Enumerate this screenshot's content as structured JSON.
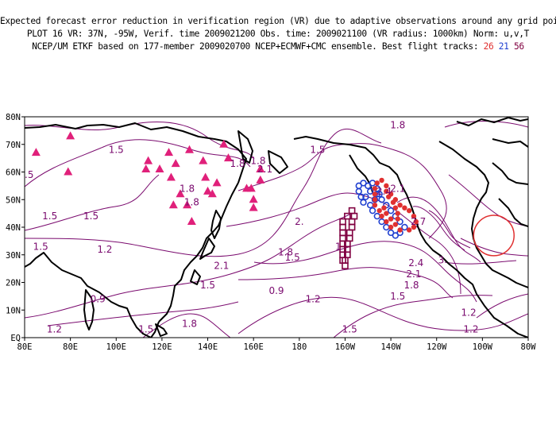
{
  "header": {
    "line1": "Expected forecast error reduction in verification region (VR) due to adaptive observations around any grid point.",
    "line2": "PLOT 16 VR: 37N, -95W, Verif. time 2009021200 Obs. time: 2009021100 (VR radius: 1000km) Norm: u,v,T",
    "line3_prefix": "NCEP/UM ETKF based on 177-member 2009020700 NCEP+ECMWF+CMC ensemble. Best flight tracks:",
    "track_ids": [
      {
        "id": "26",
        "color": "#e03030"
      },
      {
        "id": "21",
        "color": "#2040d0"
      },
      {
        "id": "56",
        "color": "#800040"
      }
    ]
  },
  "chart_data": {
    "type": "map",
    "x_axis": {
      "range": [
        60,
        280
      ],
      "ticks": [
        "80E",
        "80E",
        "100E",
        "120E",
        "140E",
        "160E",
        "180",
        "160W",
        "140W",
        "120W",
        "100W",
        "80W"
      ]
    },
    "y_axis": {
      "range": [
        0,
        80
      ],
      "ticks": [
        "EQ",
        "10N",
        "20N",
        "30N",
        "40N",
        "50N",
        "60N",
        "70N",
        "80N"
      ]
    },
    "verification_region": {
      "lat": 37,
      "lon": -95,
      "radius_km": 1000,
      "color": "#e03030"
    },
    "contour_color": "#7a0a6e",
    "contour_labels": [
      {
        "text": "1.8",
        "lon": 223,
        "lat": 77
      },
      {
        "text": "1.5",
        "lon": 100,
        "lat": 68
      },
      {
        "text": "1.5",
        "lon": 188,
        "lat": 68
      },
      {
        "text": "1.8",
        "lon": 153,
        "lat": 63
      },
      {
        "text": "1.8",
        "lon": 162,
        "lat": 64
      },
      {
        "text": "2.1",
        "lon": 165,
        "lat": 61
      },
      {
        "text": ".5",
        "lon": 62,
        "lat": 59
      },
      {
        "text": "1.8",
        "lon": 131,
        "lat": 54
      },
      {
        "text": "1.8",
        "lon": 133,
        "lat": 49
      },
      {
        "text": "2.1",
        "lon": 223,
        "lat": 54
      },
      {
        "text": "2.4",
        "lon": 217,
        "lat": 53
      },
      {
        "text": "2.",
        "lon": 180,
        "lat": 42
      },
      {
        "text": "2.7",
        "lon": 232,
        "lat": 42
      },
      {
        "text": "1.5",
        "lon": 71,
        "lat": 44
      },
      {
        "text": "1.5",
        "lon": 89,
        "lat": 44
      },
      {
        "text": "1.5",
        "lon": 67,
        "lat": 33
      },
      {
        "text": "1.2",
        "lon": 95,
        "lat": 32
      },
      {
        "text": "1.8",
        "lon": 174,
        "lat": 31
      },
      {
        "text": "1.5",
        "lon": 177,
        "lat": 29
      },
      {
        "text": "1",
        "lon": 197,
        "lat": 33
      },
      {
        "text": "3",
        "lon": 242,
        "lat": 28
      },
      {
        "text": "2.1",
        "lon": 146,
        "lat": 26
      },
      {
        "text": "2.4",
        "lon": 231,
        "lat": 27
      },
      {
        "text": "2.1",
        "lon": 230,
        "lat": 23
      },
      {
        "text": "1.8",
        "lon": 229,
        "lat": 19
      },
      {
        "text": "1.5",
        "lon": 140,
        "lat": 19
      },
      {
        "text": "0.9",
        "lon": 170,
        "lat": 17
      },
      {
        "text": "1.2",
        "lon": 186,
        "lat": 14
      },
      {
        "text": "1.5",
        "lon": 223,
        "lat": 15
      },
      {
        "text": "0.9",
        "lon": 92,
        "lat": 14
      },
      {
        "text": "1.2",
        "lon": 254,
        "lat": 9
      },
      {
        "text": "1.2",
        "lon": 73,
        "lat": 3
      },
      {
        "text": "1.5",
        "lon": 113,
        "lat": 3
      },
      {
        "text": "1.8",
        "lon": 132,
        "lat": 5
      },
      {
        "text": "1.5",
        "lon": 202,
        "lat": 3
      },
      {
        "text": "1.2",
        "lon": 255,
        "lat": 3
      }
    ],
    "sensitive_points": {
      "marker": "triangle",
      "color": "#e0207a",
      "points": [
        [
          65,
          67
        ],
        [
          80,
          73
        ],
        [
          79,
          60
        ],
        [
          113,
          61
        ],
        [
          114,
          64
        ],
        [
          119,
          61
        ],
        [
          123,
          67
        ],
        [
          124,
          58
        ],
        [
          126,
          63
        ],
        [
          132,
          68
        ],
        [
          138,
          64
        ],
        [
          147,
          70
        ],
        [
          140,
          53
        ],
        [
          139,
          58
        ],
        [
          144,
          56
        ],
        [
          159,
          54
        ],
        [
          160,
          50
        ],
        [
          160,
          47
        ],
        [
          163,
          57
        ],
        [
          163,
          61
        ],
        [
          157,
          54
        ],
        [
          131,
          48
        ],
        [
          142,
          52
        ],
        [
          149,
          65
        ],
        [
          133,
          42
        ],
        [
          128,
          52
        ],
        [
          125,
          48
        ]
      ]
    },
    "flight_track_26": {
      "marker": "dot",
      "color": "#e03030",
      "points": [
        [
          217,
          47
        ],
        [
          218,
          45
        ],
        [
          220,
          43
        ],
        [
          222,
          41
        ],
        [
          223,
          43
        ],
        [
          223,
          45
        ],
        [
          222,
          47
        ],
        [
          221,
          49
        ],
        [
          219,
          51
        ],
        [
          218,
          53
        ],
        [
          218,
          55
        ],
        [
          216,
          57
        ],
        [
          214,
          56
        ],
        [
          213,
          54
        ],
        [
          213,
          52
        ],
        [
          213,
          50
        ],
        [
          213,
          48
        ],
        [
          215,
          46
        ],
        [
          216,
          44
        ],
        [
          218,
          42
        ],
        [
          220,
          40
        ],
        [
          224,
          39
        ],
        [
          228,
          39
        ],
        [
          230,
          40
        ],
        [
          231,
          42
        ],
        [
          230,
          44
        ],
        [
          228,
          46
        ],
        [
          226,
          47
        ],
        [
          224,
          48
        ],
        [
          222,
          50
        ],
        [
          220,
          52
        ]
      ]
    },
    "flight_track_21": {
      "marker": "circle",
      "color": "#2040d0",
      "points": [
        [
          208,
          56
        ],
        [
          210,
          55
        ],
        [
          212,
          56
        ],
        [
          214,
          54
        ],
        [
          215,
          52
        ],
        [
          213,
          50
        ],
        [
          211,
          48
        ],
        [
          212,
          46
        ],
        [
          214,
          44
        ],
        [
          216,
          42
        ],
        [
          218,
          40
        ],
        [
          220,
          38
        ],
        [
          222,
          37
        ],
        [
          224,
          38
        ],
        [
          226,
          40
        ],
        [
          224,
          42
        ],
        [
          222,
          44
        ],
        [
          220,
          46
        ],
        [
          218,
          48
        ],
        [
          216,
          50
        ],
        [
          214,
          52
        ],
        [
          211,
          53
        ],
        [
          209,
          51
        ],
        [
          208,
          49
        ],
        [
          207,
          51
        ],
        [
          206,
          53
        ],
        [
          206,
          55
        ]
      ]
    },
    "flight_track_56": {
      "marker": "square",
      "color": "#800040",
      "points": [
        [
          199,
          32
        ],
        [
          199,
          34
        ],
        [
          199,
          36
        ],
        [
          199,
          38
        ],
        [
          199,
          40
        ],
        [
          199,
          42
        ],
        [
          201,
          44
        ],
        [
          203,
          46
        ],
        [
          204,
          44
        ],
        [
          203,
          42
        ],
        [
          203,
          40
        ],
        [
          202,
          38
        ],
        [
          202,
          36
        ],
        [
          201,
          34
        ],
        [
          201,
          32
        ],
        [
          201,
          30
        ],
        [
          200,
          28
        ],
        [
          199,
          30
        ],
        [
          199,
          28
        ],
        [
          200,
          26
        ]
      ]
    }
  }
}
